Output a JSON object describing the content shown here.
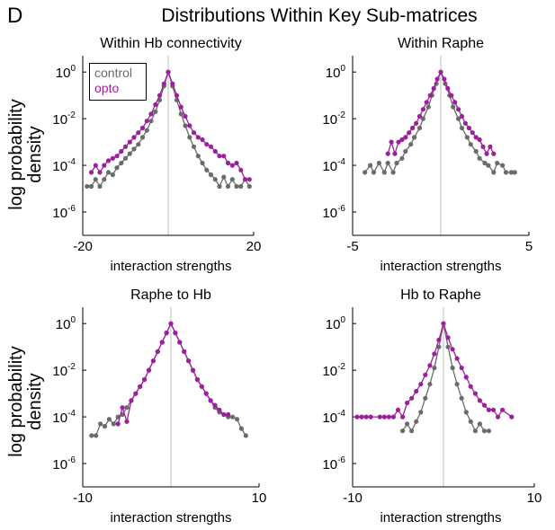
{
  "figure": {
    "panel_letter": "D",
    "title": "Distributions Within Key Sub-matrices",
    "ylabel_line1": "log probability",
    "ylabel_line2": "density",
    "legend": [
      {
        "label": "control",
        "color": "#6b6b6b"
      },
      {
        "label": "opto",
        "color": "#9c1f9c"
      }
    ]
  },
  "colors": {
    "control": "#6b6b6b",
    "opto": "#9c1f9c",
    "centerline": "#bdbdbd"
  },
  "chart_data": [
    {
      "type": "line",
      "title": "Within Hb connectivity",
      "xlabel": "interaction strengths",
      "ylabel": "log probability density",
      "xlim": [
        -20,
        20
      ],
      "x_ticks": [
        -20,
        20
      ],
      "ylim_log10": [
        -7,
        0.7
      ],
      "y_scale": "log",
      "y_ticks": [
        "10^0",
        "10^-2",
        "10^-4",
        "10^-6"
      ],
      "legend_placement": "top-left",
      "series": [
        {
          "name": "control",
          "x": [
            -19,
            -18,
            -17,
            -16,
            -15,
            -14,
            -13,
            -12,
            -11,
            -10,
            -9,
            -8,
            -7,
            -6,
            -5,
            -4,
            -3,
            -2,
            -1,
            0,
            1,
            2,
            3,
            4,
            5,
            6,
            7,
            8,
            9,
            10,
            11,
            12,
            13,
            14,
            15,
            16,
            17,
            18,
            19
          ],
          "y_log10": [
            -4.9,
            -4.9,
            -4.6,
            -4.9,
            -4.6,
            -4.3,
            -4.4,
            -4.1,
            -3.9,
            -3.7,
            -3.5,
            -3.3,
            -3.1,
            -2.8,
            -2.5,
            -2.1,
            -1.7,
            -1.2,
            -0.6,
            0,
            -0.6,
            -1.2,
            -1.8,
            -2.3,
            -2.8,
            -3.2,
            -3.6,
            -3.9,
            -4.2,
            -4.4,
            -4.6,
            -4.9,
            -4.5,
            -4.9,
            -4.6,
            -4.9,
            -4.9,
            -4.6,
            -4.9
          ]
        },
        {
          "name": "opto",
          "x": [
            -18,
            -17,
            -16,
            -15,
            -14,
            -13,
            -12,
            -11,
            -10,
            -9,
            -8,
            -7,
            -6,
            -5,
            -4,
            -3,
            -2,
            -1,
            0,
            1,
            2,
            3,
            4,
            5,
            6,
            7,
            8,
            9,
            10,
            11,
            12,
            13,
            14,
            15,
            16,
            17,
            18,
            19
          ],
          "y_log10": [
            -4.3,
            -4.0,
            -4.3,
            -4.0,
            -3.8,
            -3.7,
            -3.6,
            -3.4,
            -3.2,
            -3.0,
            -2.8,
            -2.6,
            -2.4,
            -2.1,
            -1.8,
            -1.4,
            -1.0,
            -0.5,
            0,
            -0.5,
            -1.0,
            -1.5,
            -1.9,
            -2.3,
            -2.6,
            -2.8,
            -2.9,
            -3.1,
            -3.2,
            -3.4,
            -3.6,
            -3.6,
            -3.9,
            -4.0,
            -3.9,
            -4.2,
            -4.6,
            -4.6
          ]
        }
      ]
    },
    {
      "type": "line",
      "title": "Within Raphe",
      "xlabel": "interaction strengths",
      "ylabel": "",
      "xlim": [
        -5,
        5
      ],
      "x_ticks": [
        -5,
        5
      ],
      "ylim_log10": [
        -7,
        0.7
      ],
      "y_scale": "log",
      "y_ticks": [
        "10^0",
        "10^-2",
        "10^-4",
        "10^-6"
      ],
      "series": [
        {
          "name": "control",
          "x": [
            -4.3,
            -4.0,
            -3.8,
            -3.5,
            -3.2,
            -3.0,
            -2.7,
            -2.5,
            -2.2,
            -2.0,
            -1.7,
            -1.5,
            -1.2,
            -1.0,
            -0.7,
            -0.5,
            -0.25,
            0,
            0.25,
            0.5,
            0.7,
            1.0,
            1.2,
            1.5,
            1.7,
            2.0,
            2.2,
            2.5,
            2.7,
            3.0,
            3.2,
            3.5,
            3.7,
            4.0,
            4.2
          ],
          "y_log10": [
            -4.3,
            -4.0,
            -4.3,
            -3.9,
            -4.3,
            -3.9,
            -4.3,
            -3.9,
            -3.7,
            -3.4,
            -3.1,
            -2.8,
            -2.4,
            -2.0,
            -1.5,
            -1.0,
            -0.5,
            0,
            -0.5,
            -1.0,
            -1.5,
            -2.0,
            -2.4,
            -2.8,
            -3.1,
            -3.4,
            -3.7,
            -3.9,
            -4.0,
            -4.3,
            -3.9,
            -4.0,
            -4.3,
            -4.3,
            -4.3
          ]
        },
        {
          "name": "opto",
          "x": [
            -3.0,
            -2.8,
            -2.6,
            -2.4,
            -2.2,
            -2.0,
            -1.8,
            -1.6,
            -1.4,
            -1.2,
            -1.0,
            -0.8,
            -0.6,
            -0.4,
            -0.2,
            0,
            0.2,
            0.4,
            0.6,
            0.8,
            1.0,
            1.2,
            1.4,
            1.6,
            1.8,
            2.0,
            2.2,
            2.4,
            2.6,
            2.8,
            3.0
          ],
          "y_log10": [
            -3.5,
            -3.0,
            -3.5,
            -3.0,
            -2.9,
            -2.8,
            -2.6,
            -2.4,
            -2.2,
            -1.9,
            -1.6,
            -1.3,
            -1.0,
            -0.7,
            -0.3,
            0,
            -0.3,
            -0.7,
            -1.0,
            -1.3,
            -1.6,
            -1.9,
            -2.2,
            -2.4,
            -2.6,
            -2.8,
            -2.9,
            -3.2,
            -3.5,
            -3.2,
            -3.5
          ]
        }
      ]
    },
    {
      "type": "line",
      "title": "Raphe to Hb",
      "xlabel": "interaction strengths",
      "ylabel": "log probability density",
      "xlim": [
        -10,
        10
      ],
      "x_ticks": [
        -10,
        10
      ],
      "ylim_log10": [
        -7,
        0.7
      ],
      "y_scale": "log",
      "y_ticks": [
        "10^0",
        "10^-2",
        "10^-4",
        "10^-6"
      ],
      "series": [
        {
          "name": "control",
          "x": [
            -9,
            -8.5,
            -8,
            -7.5,
            -7,
            -6.5,
            -6,
            -5.5,
            -5,
            -4.5,
            -4,
            -3.5,
            -3,
            -2.5,
            -2,
            -1.5,
            -1,
            -0.5,
            0,
            0.5,
            1,
            1.5,
            2,
            2.5,
            3,
            3.5,
            4,
            4.5,
            5,
            5.5,
            6,
            6.5,
            7,
            7.5,
            8,
            8.5
          ],
          "y_log10": [
            -4.8,
            -4.8,
            -4.3,
            -4.4,
            -4.1,
            -4.3,
            -4.0,
            -3.9,
            -3.6,
            -3.3,
            -3.0,
            -2.7,
            -2.4,
            -2.0,
            -1.6,
            -1.2,
            -0.8,
            -0.4,
            0,
            -0.4,
            -0.8,
            -1.2,
            -1.6,
            -2.0,
            -2.4,
            -2.7,
            -3.0,
            -3.3,
            -3.6,
            -3.8,
            -3.9,
            -4.0,
            -4.0,
            -4.1,
            -4.5,
            -4.8
          ]
        },
        {
          "name": "opto",
          "x": [
            -6,
            -5.5,
            -5,
            -4.5,
            -4,
            -3.5,
            -3,
            -2.5,
            -2,
            -1.5,
            -1,
            -0.5,
            0,
            0.5,
            1,
            1.5,
            2,
            2.5,
            3,
            3.5,
            4,
            4.5,
            5,
            5.5,
            6,
            6.5
          ],
          "y_log10": [
            -4.3,
            -3.6,
            -4.2,
            -3.3,
            -3.0,
            -2.7,
            -2.4,
            -2.0,
            -1.6,
            -1.2,
            -0.8,
            -0.4,
            0,
            -0.4,
            -0.8,
            -1.2,
            -1.6,
            -2.0,
            -2.4,
            -2.7,
            -3.0,
            -3.3,
            -3.5,
            -3.7,
            -3.9,
            -3.9
          ]
        }
      ]
    },
    {
      "type": "line",
      "title": "Hb to Raphe",
      "xlabel": "interaction strengths",
      "ylabel": "",
      "xlim": [
        -10,
        10
      ],
      "x_ticks": [
        -10,
        10
      ],
      "ylim_log10": [
        -7,
        0.7
      ],
      "y_scale": "log",
      "y_ticks": [
        "10^0",
        "10^-2",
        "10^-4",
        "10^-6"
      ],
      "series": [
        {
          "name": "control",
          "x": [
            -4.5,
            -4,
            -3.5,
            -3,
            -2.5,
            -2,
            -1.5,
            -1,
            -0.5,
            0,
            0.5,
            1,
            1.5,
            2,
            2.5,
            3,
            3.5,
            4,
            4.5,
            5
          ],
          "y_log10": [
            -4.6,
            -4.3,
            -4.6,
            -4.2,
            -3.8,
            -3.2,
            -2.6,
            -1.9,
            -1.0,
            0,
            -1.0,
            -1.9,
            -2.6,
            -3.2,
            -3.8,
            -4.2,
            -4.6,
            -4.3,
            -4.6,
            -4.6
          ]
        },
        {
          "name": "opto",
          "x": [
            -9.5,
            -9,
            -8.5,
            -8,
            -7,
            -6.5,
            -6,
            -5.5,
            -5,
            -4.5,
            -4,
            -3.5,
            -3,
            -2.5,
            -2,
            -1.5,
            -1,
            -0.5,
            0,
            0.5,
            1,
            1.5,
            2,
            2.5,
            3,
            3.5,
            4,
            4.5,
            5,
            5.5,
            6,
            6.5,
            7.5
          ],
          "y_log10": [
            -4.0,
            -4.0,
            -4.0,
            -4.0,
            -4.0,
            -4.0,
            -4.0,
            -4.0,
            -3.7,
            -4.0,
            -3.4,
            -3.2,
            -2.9,
            -2.6,
            -2.2,
            -1.8,
            -1.3,
            -0.7,
            0,
            -0.6,
            -1.1,
            -1.5,
            -1.9,
            -2.3,
            -2.7,
            -3.0,
            -3.3,
            -3.5,
            -3.7,
            -3.7,
            -4.0,
            -3.7,
            -4.0
          ]
        }
      ]
    }
  ]
}
